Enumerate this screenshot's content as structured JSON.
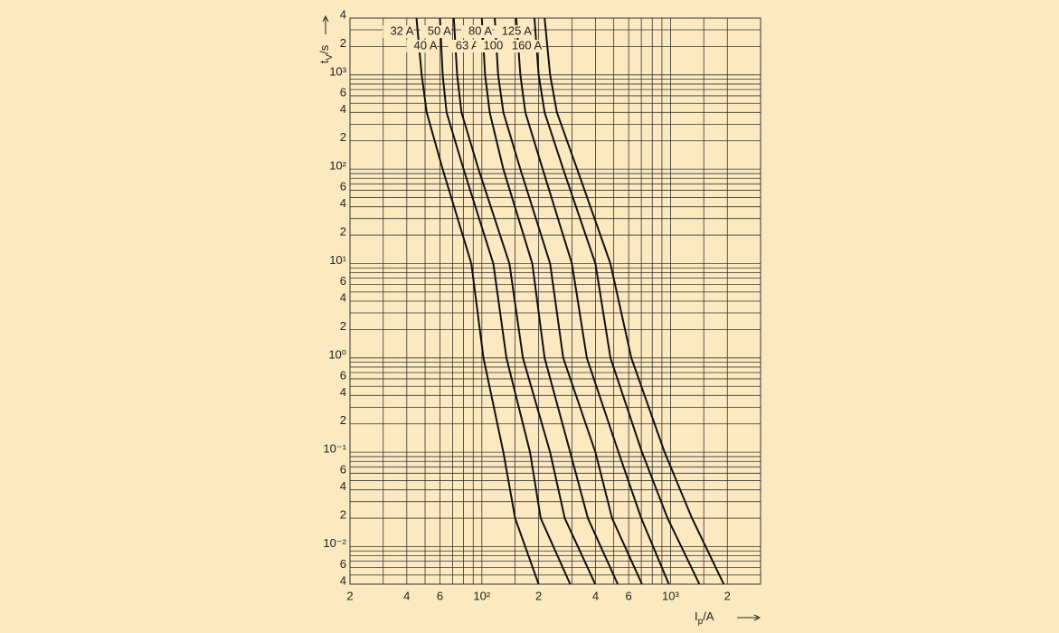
{
  "chart_data": {
    "type": "line",
    "log_x": true,
    "log_y": true,
    "grid": true,
    "x_label": [
      "I",
      "p",
      "/A"
    ],
    "y_label": [
      "t",
      "V",
      "/s"
    ],
    "xlim": [
      20,
      3000
    ],
    "ylim": [
      0.004,
      4000
    ],
    "xticks": [
      {
        "value": 20,
        "label": "2"
      },
      {
        "value": 40,
        "label": "4"
      },
      {
        "value": 60,
        "label": "6"
      },
      {
        "value": 100,
        "label": "10²"
      },
      {
        "value": 200,
        "label": "2"
      },
      {
        "value": 400,
        "label": "4"
      },
      {
        "value": 600,
        "label": "6"
      },
      {
        "value": 1000,
        "label": "10³"
      },
      {
        "value": 2000,
        "label": "2"
      }
    ],
    "xminor": [
      30,
      50,
      70,
      80,
      90,
      150,
      300,
      500,
      700,
      800,
      900,
      1500
    ],
    "yticks": [
      {
        "value": 0.004,
        "label": "4"
      },
      {
        "value": 0.006,
        "label": "6"
      },
      {
        "value": 0.01,
        "label": "10⁻²"
      },
      {
        "value": 0.02,
        "label": "2"
      },
      {
        "value": 0.04,
        "label": "4"
      },
      {
        "value": 0.06,
        "label": "6"
      },
      {
        "value": 0.1,
        "label": "10⁻¹"
      },
      {
        "value": 0.2,
        "label": "2"
      },
      {
        "value": 0.4,
        "label": "4"
      },
      {
        "value": 0.6,
        "label": "6"
      },
      {
        "value": 1,
        "label": "10⁰"
      },
      2,
      4,
      6,
      {
        "value": 10,
        "label": "10¹"
      },
      {
        "value": 20,
        "label": "2"
      },
      {
        "value": 40,
        "label": "4"
      },
      {
        "value": 60,
        "label": "6"
      },
      {
        "value": 100,
        "label": "10²"
      },
      {
        "value": 200,
        "label": "2"
      },
      {
        "value": 400,
        "label": "4"
      },
      {
        "value": 600,
        "label": "6"
      },
      {
        "value": 1000,
        "label": "10³"
      },
      {
        "value": 2000,
        "label": "2"
      },
      {
        "value": 4000,
        "label": "4"
      }
    ],
    "yminor": [
      0.005,
      0.007,
      0.008,
      0.009,
      0.03,
      0.05,
      0.07,
      0.08,
      0.09,
      0.3,
      0.5,
      0.7,
      0.8,
      0.9,
      3,
      5,
      7,
      8,
      9,
      30,
      50,
      70,
      80,
      90,
      300,
      500,
      700,
      800,
      900,
      3000
    ],
    "series": [
      {
        "name": "32 A",
        "color": "#111111",
        "x": [
          45,
          48,
          51,
          62,
          88,
          102,
          130,
          150,
          200
        ],
        "values": [
          4000,
          1000,
          400,
          100,
          10,
          1,
          0.1,
          0.02,
          0.004
        ]
      },
      {
        "name": "40 A",
        "color": "#111111",
        "x": [
          60,
          62,
          65,
          80,
          115,
          135,
          180,
          205,
          294
        ],
        "values": [
          4000,
          1000,
          400,
          100,
          10,
          1,
          0.1,
          0.02,
          0.004
        ]
      },
      {
        "name": "50 A",
        "color": "#111111",
        "x": [
          71,
          74,
          78,
          96,
          140,
          165,
          230,
          275,
          399
        ],
        "values": [
          4000,
          1000,
          400,
          100,
          10,
          1,
          0.1,
          0.02,
          0.004
        ]
      },
      {
        "name": "63 A",
        "color": "#111111",
        "x": [
          100,
          104,
          110,
          130,
          185,
          215,
          294,
          365,
          525
        ],
        "values": [
          4000,
          1000,
          400,
          100,
          10,
          1,
          0.1,
          0.02,
          0.004
        ]
      },
      {
        "name": "80 A",
        "color": "#111111",
        "x": [
          117,
          122,
          130,
          160,
          230,
          270,
          400,
          490,
          706
        ],
        "values": [
          4000,
          1000,
          400,
          100,
          10,
          1,
          0.1,
          0.02,
          0.004
        ]
      },
      {
        "name": "100 A",
        "color": "#111111",
        "x": [
          152,
          160,
          170,
          210,
          300,
          360,
          530,
          700,
          980
        ],
        "values": [
          4000,
          1000,
          400,
          100,
          10,
          1,
          0.1,
          0.02,
          0.004
        ]
      },
      {
        "name": "125 A",
        "color": "#111111",
        "x": [
          190,
          200,
          215,
          270,
          400,
          480,
          706,
          965,
          1422
        ],
        "values": [
          4000,
          1000,
          400,
          100,
          10,
          1,
          0.1,
          0.02,
          0.004
        ]
      },
      {
        "name": "160 A",
        "color": "#111111",
        "x": [
          215,
          230,
          250,
          320,
          480,
          620,
          930,
          1300,
          1914
        ],
        "values": [
          4000,
          1000,
          400,
          100,
          10,
          1,
          0.1,
          0.02,
          0.004
        ]
      }
    ]
  }
}
